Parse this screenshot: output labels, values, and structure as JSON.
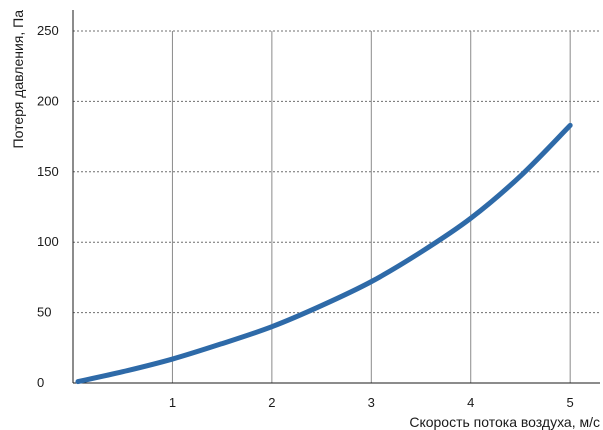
{
  "chart_data": {
    "type": "line",
    "xlabel": "Скорость потока воздуха, м/с",
    "ylabel": "Потеря давления, Па",
    "xlim": [
      0,
      5.3
    ],
    "ylim": [
      0,
      250
    ],
    "xticks": [
      "1",
      "2",
      "3",
      "4",
      "5"
    ],
    "yticks": [
      "0",
      "50",
      "100",
      "150",
      "200",
      "250"
    ],
    "grid": true,
    "legend": "none",
    "series": [
      {
        "color": "#2e6aa8",
        "x": [
          0.05,
          0.5,
          1,
          1.5,
          2,
          2.5,
          3,
          3.5,
          4,
          4.5,
          5
        ],
        "y": [
          1,
          8,
          17,
          28,
          40,
          55,
          72,
          93,
          117,
          147,
          183
        ]
      }
    ]
  }
}
